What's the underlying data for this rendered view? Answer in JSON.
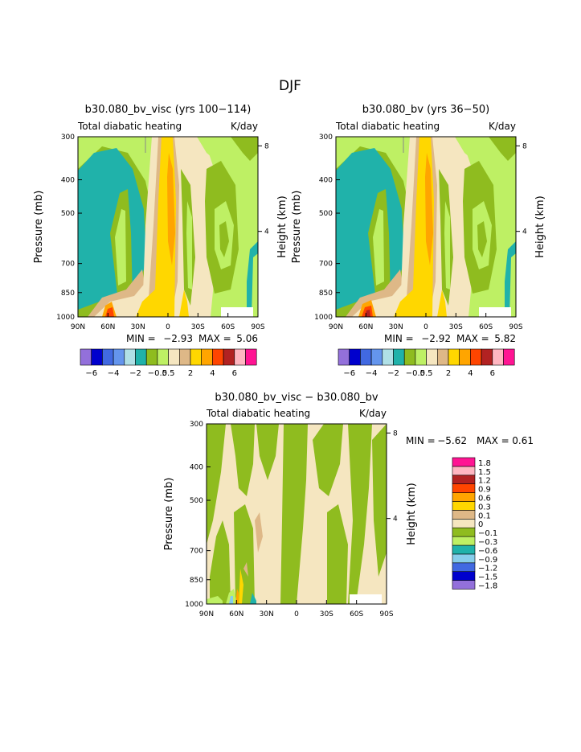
{
  "page": {
    "title": "DJF"
  },
  "colors": {
    "panel": [
      "#9370DB",
      "#0000CD",
      "#4169E1",
      "#6495ED",
      "#B0E0E6",
      "#20B2AA",
      "#8FBC1F",
      "#BEF064",
      "#F5E6C0",
      "#DEB887",
      "#FFD700",
      "#FFA500",
      "#FF4500",
      "#B22222",
      "#FFB6C1",
      "#FF1493"
    ],
    "diff": [
      "#9370DB",
      "#0000CD",
      "#4169E1",
      "#87CEEB",
      "#20B2AA",
      "#BEF064",
      "#8FBC1F",
      "#F5E6C0",
      "#DEB887",
      "#FFD700",
      "#FFA500",
      "#FF4500",
      "#B22222",
      "#FFB6C1",
      "#FF1493"
    ]
  },
  "chart_data": [
    {
      "type": "contour",
      "title": "b30.080_bv_visc (yrs 100−114)",
      "subtitle_left": "Total diabatic heating",
      "subtitle_right": "K/day",
      "ylabel": "Pressure (mb)",
      "ylabel_right": "Height (km)",
      "x_ticks": [
        "90N",
        "60N",
        "30N",
        "0",
        "30S",
        "60S",
        "90S"
      ],
      "x_values": [
        90,
        60,
        30,
        0,
        -30,
        -60,
        -90
      ],
      "y_ticks": [
        "300",
        "400",
        "500",
        "700",
        "850",
        "1000"
      ],
      "y_values": [
        300,
        400,
        500,
        700,
        850,
        1000
      ],
      "height_ticks": [
        "8",
        "4"
      ],
      "height_values": [
        8,
        4
      ],
      "stats_min_label": "MIN =",
      "stats_min": "−2.93",
      "stats_max_label": "MAX =",
      "stats_max": "5.06",
      "min": -2.93,
      "max": 5.06,
      "colorbar_labels": [
        "−6",
        "−4",
        "−2",
        "−0.5",
        "0.5",
        "2",
        "4",
        "6"
      ]
    },
    {
      "type": "contour",
      "title": "b30.080_bv (yrs 36−50)",
      "subtitle_left": "Total diabatic heating",
      "subtitle_right": "K/day",
      "ylabel": "Pressure (mb)",
      "ylabel_right": "Height (km)",
      "x_ticks": [
        "90N",
        "60N",
        "30N",
        "0",
        "30S",
        "60S",
        "90S"
      ],
      "x_values": [
        90,
        60,
        30,
        0,
        -30,
        -60,
        -90
      ],
      "y_ticks": [
        "300",
        "400",
        "500",
        "700",
        "850",
        "1000"
      ],
      "y_values": [
        300,
        400,
        500,
        700,
        850,
        1000
      ],
      "height_ticks": [
        "8",
        "4"
      ],
      "height_values": [
        8,
        4
      ],
      "stats_min_label": "MIN =",
      "stats_min": "−2.92",
      "stats_max_label": "MAX =",
      "stats_max": "5.82",
      "min": -2.92,
      "max": 5.82,
      "colorbar_labels": [
        "−6",
        "−4",
        "−2",
        "−0.5",
        "0.5",
        "2",
        "4",
        "6"
      ]
    },
    {
      "type": "contour",
      "title": "b30.080_bv_visc − b30.080_bv",
      "subtitle_left": "Total diabatic heating",
      "subtitle_right": "K/day",
      "ylabel": "Pressure (mb)",
      "ylabel_right": "Height (km)",
      "x_ticks": [
        "90N",
        "60N",
        "30N",
        "0",
        "30S",
        "60S",
        "90S"
      ],
      "x_values": [
        90,
        60,
        30,
        0,
        -30,
        -60,
        -90
      ],
      "y_ticks": [
        "300",
        "400",
        "500",
        "700",
        "850",
        "1000"
      ],
      "y_values": [
        300,
        400,
        500,
        700,
        850,
        1000
      ],
      "height_ticks": [
        "8",
        "4"
      ],
      "height_values": [
        8,
        4
      ],
      "stats_min_label": "MIN =",
      "stats_min": "−5.62",
      "stats_max_label": "MAX =",
      "stats_max": "0.61",
      "min": -5.62,
      "max": 0.61,
      "colorbar_labels": [
        "1.8",
        "1.5",
        "1.2",
        "0.9",
        "0.6",
        "0.3",
        "0.1",
        "0",
        "−0.1",
        "−0.3",
        "−0.6",
        "−0.9",
        "−1.2",
        "−1.5",
        "−1.8"
      ]
    }
  ]
}
